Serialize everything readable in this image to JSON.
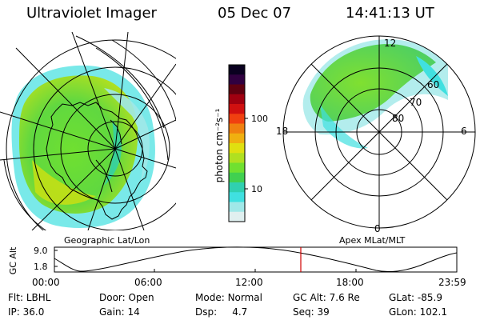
{
  "header": {
    "instrument": "Ultraviolet Imager",
    "date": "05 Dec 07",
    "time": "14:41:13 UT"
  },
  "left_map": {
    "label": "Geographic Lat/Lon"
  },
  "right_map": {
    "label": "Apex MLat/MLT",
    "mlt_labels": {
      "top": "12",
      "left": "18",
      "right": "6",
      "bottom": "0"
    },
    "lat_labels": [
      "60",
      "70",
      "80"
    ]
  },
  "colorbar": {
    "unit_label": "photon cm⁻²s⁻¹",
    "ticks": [
      "100",
      "10"
    ],
    "colors": [
      "#0a0020",
      "#300040",
      "#600010",
      "#a00010",
      "#d01010",
      "#f04010",
      "#f08010",
      "#f0b010",
      "#e0e010",
      "#b0e020",
      "#70e030",
      "#40d050",
      "#30d0b0",
      "#40e0e0",
      "#a0e8e8",
      "#e0f0f0"
    ],
    "scale": "log"
  },
  "altitude_plot": {
    "ylabel": "GC Alt",
    "yticks": [
      "9.0",
      "1.8"
    ],
    "xticks": [
      "00:00",
      "06:00",
      "12:00",
      "18:00",
      "23:59"
    ],
    "marker_time": "14:41",
    "marker_color": "#d00000"
  },
  "info": {
    "row1": [
      {
        "key": "Flt:",
        "value": "LBHL"
      },
      {
        "key": "Door:",
        "value": "Open"
      },
      {
        "key": "Mode:",
        "value": "Normal"
      },
      {
        "key": "GC Alt:",
        "value": "7.6 Re"
      },
      {
        "key": "GLat:",
        "value": "-85.9"
      }
    ],
    "row2": [
      {
        "key": "IP:",
        "value": "36.0"
      },
      {
        "key": "Gain:",
        "value": "14"
      },
      {
        "key": "Dsp:",
        "value": "4.7"
      },
      {
        "key": "Seq:",
        "value": "39"
      },
      {
        "key": "GLon:",
        "value": "102.1"
      }
    ]
  }
}
